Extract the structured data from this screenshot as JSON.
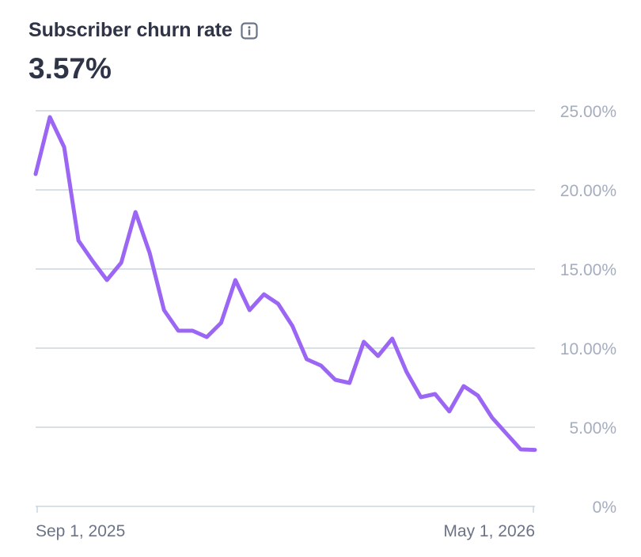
{
  "header": {
    "title": "Subscriber churn rate",
    "info_icon": "info-icon",
    "value": "3.57%"
  },
  "colors": {
    "line": "#9c66f5",
    "grid": "#cbd5df",
    "text": "#2f3447",
    "tick": "#a5adbe"
  },
  "chart_data": {
    "type": "line",
    "x_start_label": "Sep 1, 2025",
    "x_end_label": "May 1, 2026",
    "y_ticks": [
      "0%",
      "5.00%",
      "10.00%",
      "15.00%",
      "20.00%",
      "25.00%"
    ],
    "y_tick_values": [
      0,
      5,
      10,
      15,
      20,
      25
    ],
    "ylim": [
      0,
      25
    ],
    "grid": true,
    "series": [
      {
        "values": [
          21.0,
          24.6,
          22.7,
          16.8,
          15.5,
          14.3,
          15.4,
          18.6,
          16.0,
          12.4,
          11.1,
          11.1,
          10.7,
          11.6,
          14.3,
          12.4,
          13.4,
          12.8,
          11.4,
          9.3,
          8.9,
          8.0,
          7.8,
          10.4,
          9.5,
          10.6,
          8.5,
          6.9,
          7.1,
          6.0,
          7.6,
          7.0,
          5.6,
          4.6,
          3.6,
          3.57
        ]
      }
    ]
  }
}
